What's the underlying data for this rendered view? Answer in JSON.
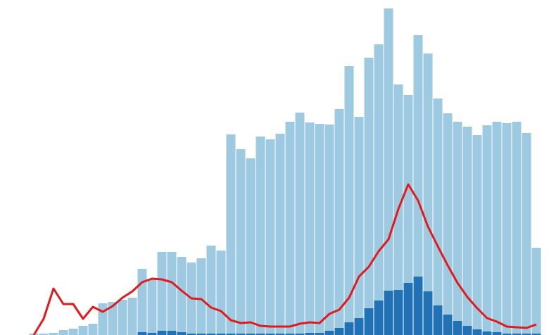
{
  "chart_data": {
    "type": "bar",
    "ylim": [
      0,
      476
    ],
    "series": [
      {
        "color": "#9ecae1",
        "values": [
          2,
          2,
          3,
          7,
          9,
          13,
          16,
          45,
          47,
          50,
          53,
          94,
          80,
          118,
          118,
          111,
          103,
          109,
          127,
          120,
          285,
          264,
          251,
          282,
          278,
          286,
          303,
          316,
          302,
          300,
          299,
          321,
          382,
          310,
          394,
          413,
          464,
          356,
          341,
          426,
          400,
          336,
          315,
          303,
          296,
          284,
          298,
          303,
          301,
          303,
          287,
          124
        ]
      },
      {
        "color": "#2171b5",
        "values": [
          0,
          0,
          0,
          0,
          0,
          0,
          0,
          0,
          0,
          0,
          0,
          4,
          3,
          6,
          6,
          4,
          2,
          2,
          2,
          2,
          2,
          2,
          2,
          2,
          2,
          2,
          2,
          2,
          3,
          3,
          6,
          10,
          18,
          24,
          38,
          49,
          63,
          64,
          74,
          83,
          62,
          42,
          29,
          20,
          13,
          8,
          5,
          4,
          2,
          2,
          2,
          2
        ]
      },
      {
        "type": "line",
        "color": "#e31a1c",
        "values": [
          0,
          23,
          66,
          44,
          44,
          23,
          40,
          33,
          41,
          53,
          62,
          75,
          80,
          79,
          75,
          63,
          52,
          51,
          39,
          34,
          21,
          17,
          18,
          13,
          12,
          12,
          12,
          16,
          18,
          17,
          30,
          36,
          53,
          83,
          97,
          119,
          136,
          179,
          214,
          191,
          154,
          126,
          99,
          74,
          54,
          38,
          24,
          19,
          12,
          11,
          10,
          15
        ]
      }
    ]
  }
}
